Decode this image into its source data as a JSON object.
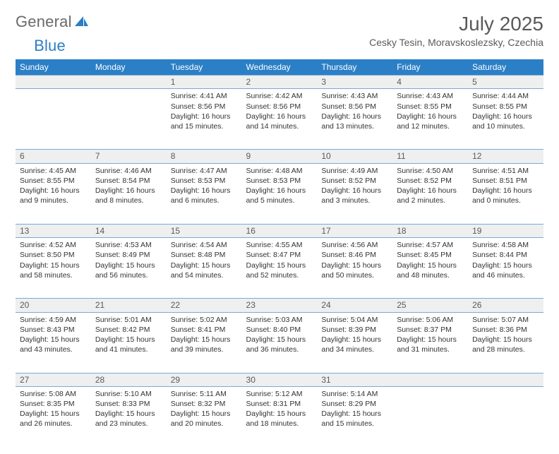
{
  "brand": {
    "part1": "General",
    "part2": "Blue"
  },
  "title": "July 2025",
  "location": "Cesky Tesin, Moravskoslezsky, Czechia",
  "theme": {
    "header_bg": "#2b7fc6",
    "header_fg": "#ffffff",
    "daynum_bg": "#efefef",
    "row_border": "#7aa9d4",
    "text": "#333333",
    "muted": "#5a5a5a"
  },
  "day_headers": [
    "Sunday",
    "Monday",
    "Tuesday",
    "Wednesday",
    "Thursday",
    "Friday",
    "Saturday"
  ],
  "start_day_index": 2,
  "days": [
    {
      "n": 1,
      "sr": "4:41 AM",
      "ss": "8:56 PM",
      "dl": "16 hours and 15 minutes."
    },
    {
      "n": 2,
      "sr": "4:42 AM",
      "ss": "8:56 PM",
      "dl": "16 hours and 14 minutes."
    },
    {
      "n": 3,
      "sr": "4:43 AM",
      "ss": "8:56 PM",
      "dl": "16 hours and 13 minutes."
    },
    {
      "n": 4,
      "sr": "4:43 AM",
      "ss": "8:55 PM",
      "dl": "16 hours and 12 minutes."
    },
    {
      "n": 5,
      "sr": "4:44 AM",
      "ss": "8:55 PM",
      "dl": "16 hours and 10 minutes."
    },
    {
      "n": 6,
      "sr": "4:45 AM",
      "ss": "8:55 PM",
      "dl": "16 hours and 9 minutes."
    },
    {
      "n": 7,
      "sr": "4:46 AM",
      "ss": "8:54 PM",
      "dl": "16 hours and 8 minutes."
    },
    {
      "n": 8,
      "sr": "4:47 AM",
      "ss": "8:53 PM",
      "dl": "16 hours and 6 minutes."
    },
    {
      "n": 9,
      "sr": "4:48 AM",
      "ss": "8:53 PM",
      "dl": "16 hours and 5 minutes."
    },
    {
      "n": 10,
      "sr": "4:49 AM",
      "ss": "8:52 PM",
      "dl": "16 hours and 3 minutes."
    },
    {
      "n": 11,
      "sr": "4:50 AM",
      "ss": "8:52 PM",
      "dl": "16 hours and 2 minutes."
    },
    {
      "n": 12,
      "sr": "4:51 AM",
      "ss": "8:51 PM",
      "dl": "16 hours and 0 minutes."
    },
    {
      "n": 13,
      "sr": "4:52 AM",
      "ss": "8:50 PM",
      "dl": "15 hours and 58 minutes."
    },
    {
      "n": 14,
      "sr": "4:53 AM",
      "ss": "8:49 PM",
      "dl": "15 hours and 56 minutes."
    },
    {
      "n": 15,
      "sr": "4:54 AM",
      "ss": "8:48 PM",
      "dl": "15 hours and 54 minutes."
    },
    {
      "n": 16,
      "sr": "4:55 AM",
      "ss": "8:47 PM",
      "dl": "15 hours and 52 minutes."
    },
    {
      "n": 17,
      "sr": "4:56 AM",
      "ss": "8:46 PM",
      "dl": "15 hours and 50 minutes."
    },
    {
      "n": 18,
      "sr": "4:57 AM",
      "ss": "8:45 PM",
      "dl": "15 hours and 48 minutes."
    },
    {
      "n": 19,
      "sr": "4:58 AM",
      "ss": "8:44 PM",
      "dl": "15 hours and 46 minutes."
    },
    {
      "n": 20,
      "sr": "4:59 AM",
      "ss": "8:43 PM",
      "dl": "15 hours and 43 minutes."
    },
    {
      "n": 21,
      "sr": "5:01 AM",
      "ss": "8:42 PM",
      "dl": "15 hours and 41 minutes."
    },
    {
      "n": 22,
      "sr": "5:02 AM",
      "ss": "8:41 PM",
      "dl": "15 hours and 39 minutes."
    },
    {
      "n": 23,
      "sr": "5:03 AM",
      "ss": "8:40 PM",
      "dl": "15 hours and 36 minutes."
    },
    {
      "n": 24,
      "sr": "5:04 AM",
      "ss": "8:39 PM",
      "dl": "15 hours and 34 minutes."
    },
    {
      "n": 25,
      "sr": "5:06 AM",
      "ss": "8:37 PM",
      "dl": "15 hours and 31 minutes."
    },
    {
      "n": 26,
      "sr": "5:07 AM",
      "ss": "8:36 PM",
      "dl": "15 hours and 28 minutes."
    },
    {
      "n": 27,
      "sr": "5:08 AM",
      "ss": "8:35 PM",
      "dl": "15 hours and 26 minutes."
    },
    {
      "n": 28,
      "sr": "5:10 AM",
      "ss": "8:33 PM",
      "dl": "15 hours and 23 minutes."
    },
    {
      "n": 29,
      "sr": "5:11 AM",
      "ss": "8:32 PM",
      "dl": "15 hours and 20 minutes."
    },
    {
      "n": 30,
      "sr": "5:12 AM",
      "ss": "8:31 PM",
      "dl": "15 hours and 18 minutes."
    },
    {
      "n": 31,
      "sr": "5:14 AM",
      "ss": "8:29 PM",
      "dl": "15 hours and 15 minutes."
    }
  ],
  "labels": {
    "sunrise": "Sunrise:",
    "sunset": "Sunset:",
    "daylight": "Daylight:"
  }
}
